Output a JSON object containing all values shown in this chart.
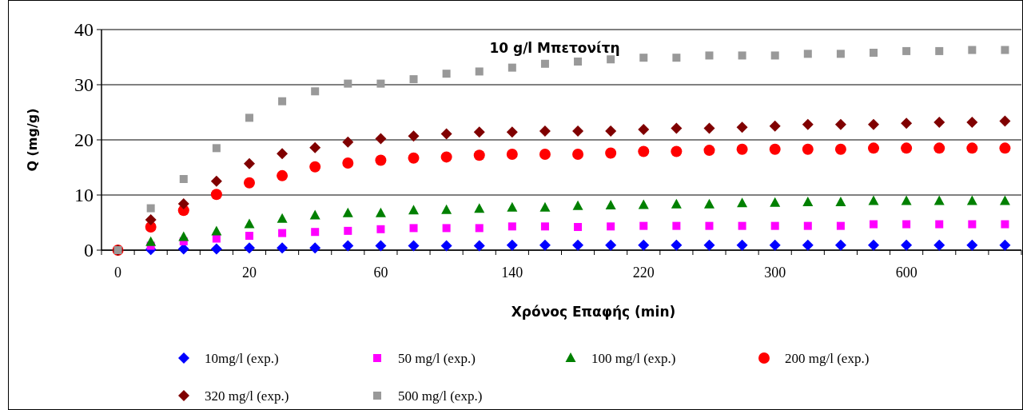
{
  "chart_data": {
    "type": "scatter",
    "title": "10 g/l Μπετονίτη",
    "xlabel": "Χρόνος Επαφής (min)",
    "ylabel": "Q (mg/g)",
    "categories": [
      "0",
      null,
      null,
      null,
      "20",
      null,
      null,
      null,
      "60",
      null,
      null,
      null,
      "140",
      null,
      null,
      null,
      "220",
      null,
      null,
      null,
      "300",
      null,
      null,
      null,
      "600",
      null,
      null,
      null
    ],
    "ylim": [
      0,
      40
    ],
    "yticks": [
      0,
      10,
      20,
      30,
      40
    ],
    "grid": "y",
    "legend": "bottom",
    "series": [
      {
        "name": "10mg/l (exp.)",
        "color": "#0000ff",
        "marker": "diamond",
        "values": [
          null,
          0.1,
          0.2,
          0.2,
          0.4,
          0.4,
          0.4,
          0.8,
          0.8,
          0.8,
          0.8,
          0.8,
          0.9,
          0.9,
          0.9,
          0.9,
          0.9,
          0.9,
          0.9,
          0.9,
          0.9,
          0.9,
          0.9,
          0.9,
          0.9,
          0.9,
          0.9,
          0.9
        ]
      },
      {
        "name": "50 mg/l (exp.)",
        "color": "#ff00ff",
        "marker": "square",
        "values": [
          null,
          0.8,
          1.6,
          2.1,
          2.6,
          3.1,
          3.3,
          3.5,
          3.8,
          4,
          4,
          4,
          4.3,
          4.3,
          4.2,
          4.3,
          4.4,
          4.4,
          4.4,
          4.4,
          4.4,
          4.4,
          4.4,
          4.7,
          4.7,
          4.7,
          4.7,
          4.7
        ]
      },
      {
        "name": "100 mg/l (exp.)",
        "color": "#008000",
        "marker": "triangle",
        "values": [
          null,
          1.5,
          2.4,
          3.4,
          4.7,
          5.7,
          6.3,
          6.7,
          6.7,
          7.2,
          7.3,
          7.5,
          7.7,
          7.7,
          8,
          8.1,
          8.2,
          8.3,
          8.3,
          8.5,
          8.6,
          8.7,
          8.7,
          8.9,
          8.9,
          8.9,
          8.9,
          8.9
        ]
      },
      {
        "name": "200 mg/l (exp.)",
        "color": "#ff0000",
        "marker": "circle",
        "values": [
          0,
          4.2,
          7.2,
          10.1,
          12.2,
          13.5,
          15.1,
          15.8,
          16.3,
          16.7,
          16.9,
          17.2,
          17.4,
          17.4,
          17.4,
          17.6,
          17.9,
          17.9,
          18.1,
          18.3,
          18.3,
          18.3,
          18.3,
          18.5,
          18.5,
          18.5,
          18.5,
          18.5
        ]
      },
      {
        "name": "320 mg/l (exp.)",
        "color": "#800000",
        "marker": "diamond",
        "values": [
          0,
          5.5,
          8.4,
          12.5,
          15.7,
          17.5,
          18.6,
          19.6,
          20.2,
          20.7,
          21.1,
          21.4,
          21.4,
          21.6,
          21.6,
          21.6,
          21.9,
          22.1,
          22.1,
          22.3,
          22.5,
          22.8,
          22.8,
          22.8,
          23,
          23.2,
          23.2,
          23.4
        ]
      },
      {
        "name": "500 mg/l (exp.)",
        "color": "#999999",
        "marker": "square",
        "values": [
          0,
          7.6,
          12.9,
          18.5,
          24,
          27,
          28.8,
          30.2,
          30.2,
          31,
          32,
          32.4,
          33.1,
          33.8,
          34.2,
          34.6,
          34.9,
          34.9,
          35.3,
          35.3,
          35.3,
          35.6,
          35.6,
          35.8,
          36.1,
          36.1,
          36.3,
          36.3
        ]
      }
    ]
  }
}
